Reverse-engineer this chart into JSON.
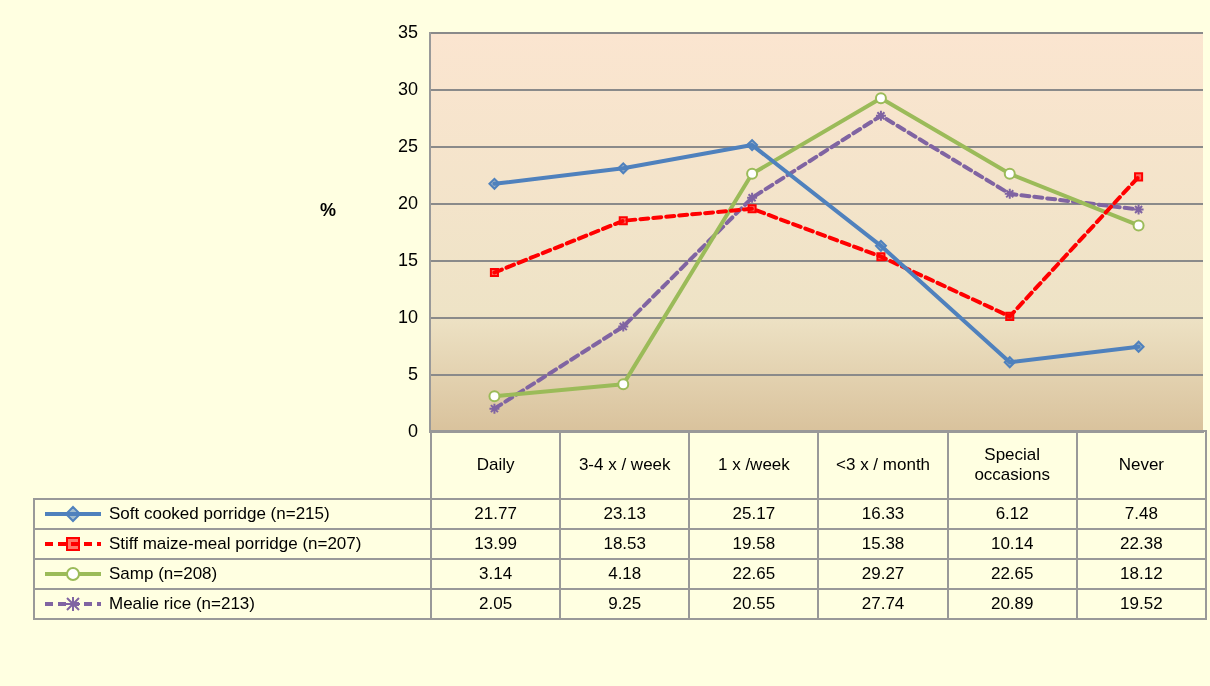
{
  "chart_data": {
    "type": "line",
    "ylabel": "%",
    "categories": [
      "Daily",
      "3-4 x / week",
      "1 x /week",
      "<3 x / month",
      "Special occasions",
      "Never"
    ],
    "series": [
      {
        "name": "Soft cooked porridge (n=215)",
        "color": "#4f81bd",
        "marker": "diamond",
        "line_style": "solid",
        "values": [
          21.77,
          23.13,
          25.17,
          16.33,
          6.12,
          7.48
        ]
      },
      {
        "name": "Stiff maize-meal porridge (n=207)",
        "color": "#ff0000",
        "marker": "square",
        "line_style": "dashed",
        "values": [
          13.99,
          18.53,
          19.58,
          15.38,
          10.14,
          22.38
        ]
      },
      {
        "name": "Samp (n=208)",
        "color": "#9bbb59",
        "marker": "circle",
        "line_style": "solid",
        "values": [
          3.14,
          4.18,
          22.65,
          29.27,
          22.65,
          18.12
        ]
      },
      {
        "name": "Mealie rice (n=213)",
        "color": "#8064a2",
        "marker": "cross",
        "line_style": "dashed",
        "values": [
          2.05,
          9.25,
          20.55,
          27.74,
          20.89,
          19.52
        ]
      }
    ],
    "ylim": [
      0,
      35
    ],
    "yticks": [
      0,
      5,
      10,
      15,
      20,
      25,
      30,
      35
    ],
    "grid": "y",
    "legend": "bottom",
    "data_labels": true
  }
}
